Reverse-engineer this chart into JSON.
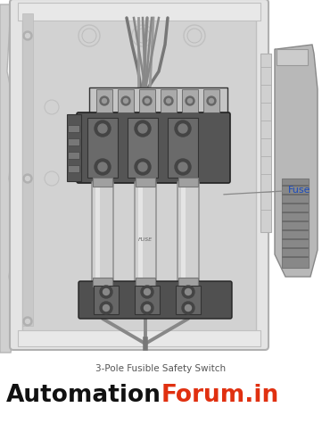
{
  "bg_color": "#ffffff",
  "caption_text": "3-Pole Fusible Safety Switch",
  "caption_color": "#555555",
  "caption_fontsize": 7.5,
  "brand_parts": [
    {
      "text": "A",
      "color": "#111111",
      "style": "bold"
    },
    {
      "text": "utomation",
      "color": "#111111",
      "style": "bold"
    },
    {
      "text": "F",
      "color": "#e03010",
      "style": "bold"
    },
    {
      "text": "orum.in",
      "color": "#e03010",
      "style": "bold"
    }
  ],
  "brand_fontsize": 19,
  "fuse_label_text": "Fuse",
  "fuse_label_color": "#1a4bbd",
  "fuse_label_fontsize": 8,
  "enclosure_outer_color": "#e4e4e4",
  "enclosure_border_color": "#b0b0b0",
  "enclosure_inner_color": "#d8d8d8",
  "panel_bg_color": "#d2d2d2",
  "component_dark": "#444444",
  "component_mid": "#777777",
  "component_light": "#aaaaaa",
  "fuse_body_color": "#d0d0d0",
  "fuse_cap_color": "#a0a0a0",
  "fuse_highlight": "#eaeaea",
  "wire_dark": "#555555",
  "wire_mid": "#888888",
  "handle_dark": "#555555",
  "handle_mid": "#888888",
  "handle_light": "#b0b0b0"
}
